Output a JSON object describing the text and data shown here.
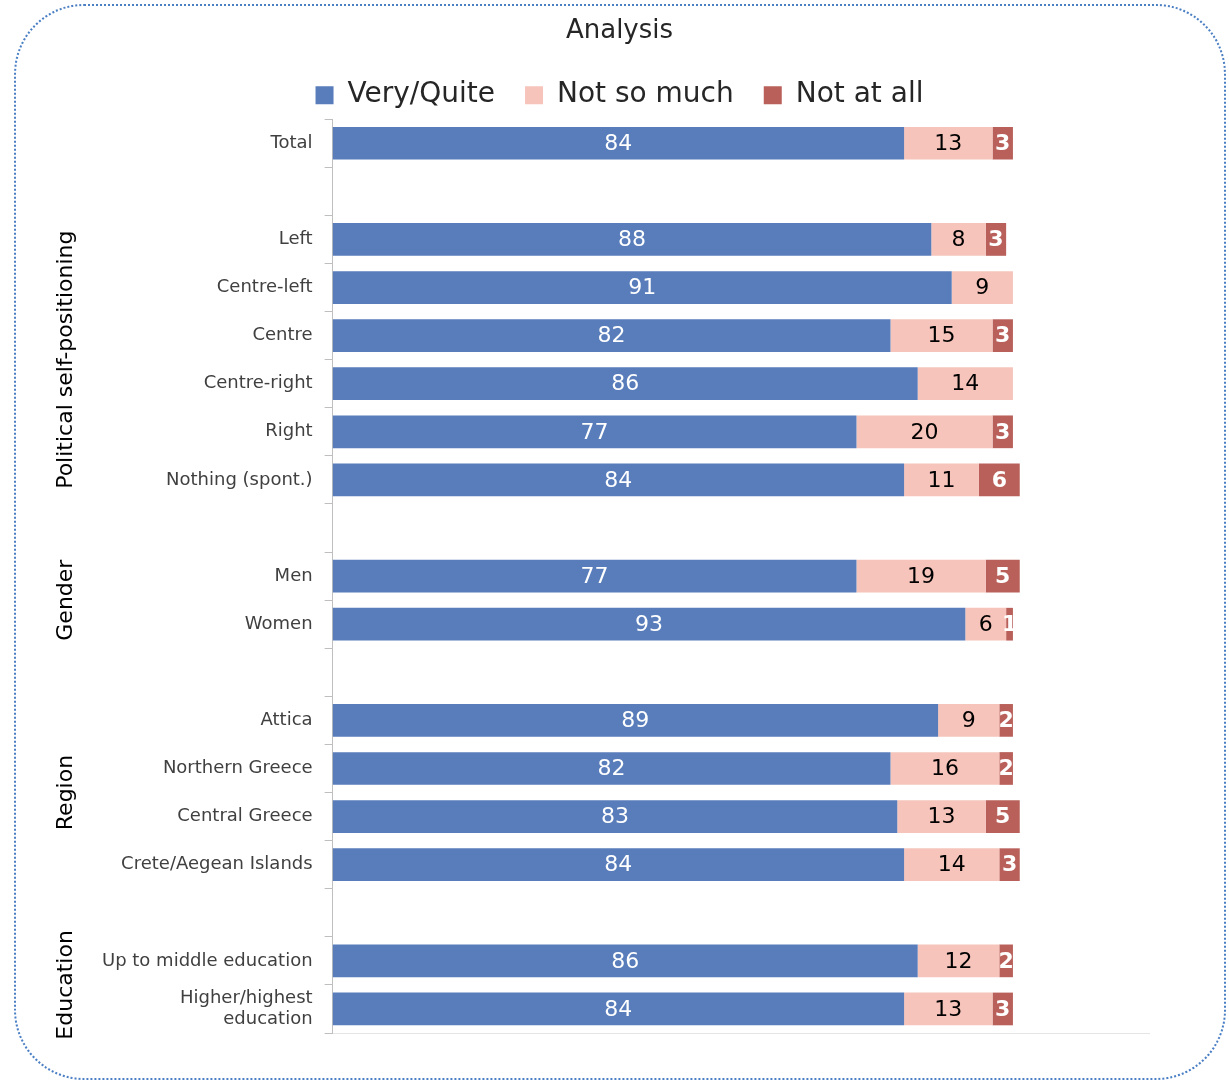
{
  "chart_data": {
    "type": "bar",
    "orientation": "horizontal",
    "stacked": true,
    "title": "Analysis",
    "categories": [
      "Total",
      null,
      "Left",
      "Centre-left",
      "Centre",
      "Centre-right",
      "Right",
      "Nothing (spont.)",
      null,
      "Men",
      "Women",
      null,
      "Attica",
      "Northern Greece",
      "Central Greece",
      "Crete/Aegean Islands",
      null,
      "Up to middle education",
      "Higher/highest education"
    ],
    "series": [
      {
        "name": "Very/Quite",
        "color": "#587dba",
        "values": [
          84,
          null,
          88,
          91,
          82,
          86,
          77,
          84,
          null,
          77,
          93,
          null,
          89,
          82,
          83,
          84,
          null,
          86,
          84
        ]
      },
      {
        "name": "Not so much",
        "color": "#f6c4ba",
        "values": [
          13,
          null,
          8,
          9,
          15,
          14,
          20,
          11,
          null,
          19,
          6,
          null,
          9,
          16,
          13,
          14,
          null,
          12,
          13
        ]
      },
      {
        "name": "Not at all",
        "color": "#b9605a",
        "values": [
          3,
          null,
          3,
          null,
          3,
          null,
          3,
          6,
          null,
          5,
          1,
          null,
          2,
          2,
          5,
          3,
          null,
          2,
          3
        ]
      }
    ],
    "annotations": [
      "Political self-positioning",
      "Gender",
      "Region",
      "Education"
    ],
    "data_labels": true,
    "legend": "top",
    "grid": false,
    "tick_labels": "y"
  }
}
